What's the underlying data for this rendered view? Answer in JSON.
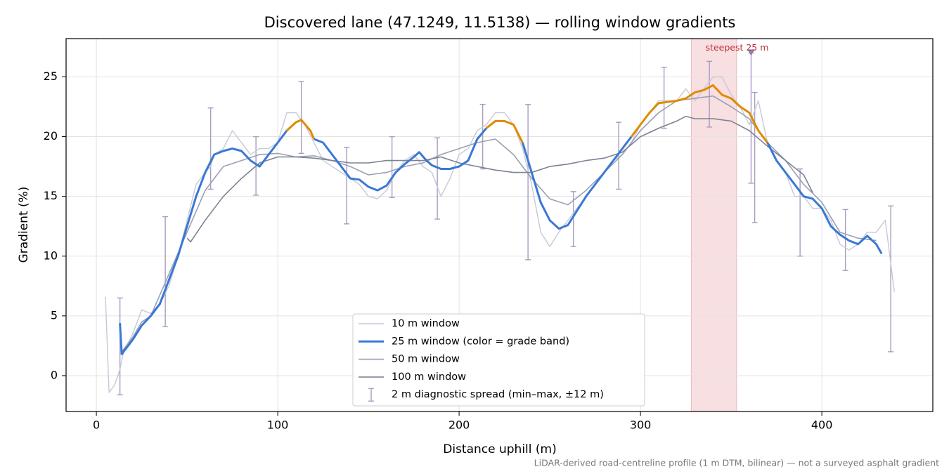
{
  "chart_data": {
    "type": "line",
    "title": "Discovered lane (47.1249, 11.5138) — rolling window gradients",
    "xlabel": "Distance uphill (m)",
    "ylabel": "Gradient (%)",
    "footnote": "LiDAR-derived road-centreline profile (1 m DTM, bilinear) — not a surveyed asphalt gradient",
    "xlim": [
      -16.7,
      461.2
    ],
    "ylim": [
      -3,
      28.2
    ],
    "xticks": [
      0,
      100,
      200,
      300,
      400
    ],
    "yticks": [
      0,
      5,
      10,
      15,
      20,
      25
    ],
    "grid": true,
    "legend": "lower center",
    "highlight": {
      "xlim": [
        328,
        353
      ],
      "color": "#f2c4c8"
    },
    "annotation": {
      "text": "steepest 25 m",
      "x": 361,
      "y": 27,
      "color": "#c0303a",
      "marker_color": "#8e7fa8"
    },
    "series": [
      {
        "name": "10 m window",
        "color": "#c5c9d8",
        "width": 1.4,
        "x": [
          5,
          7,
          10,
          13,
          15,
          20,
          25,
          30,
          35,
          40,
          45,
          50,
          55,
          60,
          63,
          65,
          70,
          75,
          80,
          85,
          90,
          95,
          100,
          105,
          110,
          115,
          120,
          125,
          130,
          135,
          140,
          145,
          150,
          155,
          160,
          165,
          170,
          175,
          180,
          185,
          190,
          195,
          200,
          205,
          210,
          215,
          220,
          225,
          230,
          235,
          240,
          245,
          250,
          255,
          260,
          265,
          270,
          275,
          280,
          285,
          290,
          295,
          300,
          305,
          310,
          315,
          320,
          325,
          330,
          335,
          340,
          345,
          350,
          355,
          360,
          365,
          370,
          375,
          380,
          385,
          390,
          395,
          400,
          405,
          410,
          415,
          420,
          425,
          430,
          435,
          440
        ],
        "values": [
          6.6,
          -1.4,
          -0.8,
          0.5,
          2,
          3.5,
          5.5,
          5.2,
          6,
          7.5,
          10,
          13,
          16,
          17,
          17.5,
          18.5,
          19,
          20.5,
          19.5,
          18.5,
          19,
          19,
          19.5,
          22,
          22,
          21,
          19.5,
          18,
          17.5,
          17,
          16.5,
          16,
          15,
          14.8,
          15.5,
          17,
          18,
          18.5,
          17.5,
          17,
          15,
          16.5,
          18.5,
          19,
          20.5,
          21,
          22,
          22,
          21,
          19,
          16,
          12,
          10.8,
          12,
          13,
          14,
          15,
          16,
          17,
          18,
          18.5,
          19.5,
          21,
          22,
          23,
          23,
          23,
          24,
          23,
          24,
          25,
          25,
          23.5,
          22.5,
          21,
          23,
          19.5,
          18,
          17,
          15,
          15,
          14,
          14,
          13,
          11,
          10.5,
          11,
          12,
          12,
          13,
          7
        ]
      },
      {
        "name": "25 m window (color = grade band)",
        "color": "#3a78d4",
        "width": 3,
        "color_bands": [
          {
            "min": 20,
            "color": "#e08a00"
          }
        ],
        "x": [
          13,
          14,
          20,
          25,
          30,
          35,
          40,
          45,
          50,
          55,
          60,
          65,
          70,
          75,
          80,
          85,
          90,
          95,
          100,
          105,
          110,
          113,
          118,
          120,
          125,
          130,
          135,
          140,
          145,
          150,
          155,
          160,
          165,
          170,
          175,
          178,
          182,
          185,
          190,
          195,
          200,
          205,
          210,
          215,
          220,
          225,
          230,
          235,
          240,
          245,
          250,
          255,
          260,
          265,
          270,
          275,
          280,
          285,
          290,
          295,
          300,
          305,
          310,
          315,
          320,
          325,
          330,
          335,
          340,
          345,
          350,
          355,
          360,
          365,
          370,
          375,
          380,
          385,
          390,
          395,
          400,
          405,
          410,
          415,
          420,
          425,
          430,
          433
        ],
        "values": [
          4.4,
          1.8,
          3,
          4.2,
          5,
          6,
          8,
          10,
          12.5,
          15,
          17,
          18.5,
          18.8,
          19,
          18.8,
          18,
          17.5,
          18.5,
          19.5,
          20.5,
          21.2,
          21.4,
          20.5,
          19.8,
          19.5,
          18.5,
          17.5,
          16.5,
          16.4,
          15.8,
          15.5,
          15.9,
          17,
          17.7,
          18.3,
          18.7,
          18,
          17.6,
          17.3,
          17.3,
          17.5,
          18,
          19.8,
          20.7,
          21.3,
          21.3,
          21,
          19.5,
          17,
          14.5,
          13,
          12.3,
          12.6,
          13.8,
          15,
          16,
          17,
          18,
          19,
          20,
          21,
          22,
          22.8,
          22.9,
          23,
          23.2,
          23.7,
          23.9,
          24.3,
          23.5,
          23.2,
          22.5,
          22,
          20.5,
          19.5,
          18,
          17,
          16,
          15,
          14.8,
          14,
          12.5,
          11.8,
          11.3,
          11,
          11.7,
          11,
          10.2
        ]
      },
      {
        "name": "50 m window",
        "color": "#9aa0b4",
        "width": 1.6,
        "x": [
          13,
          14,
          20,
          25,
          30,
          40,
          50,
          60,
          70,
          80,
          90,
          100,
          110,
          120,
          130,
          140,
          150,
          160,
          170,
          180,
          190,
          200,
          210,
          220,
          230,
          240,
          250,
          260,
          270,
          280,
          290,
          300,
          310,
          320,
          330,
          340,
          350,
          360,
          370,
          380,
          390,
          400,
          410,
          420,
          430
        ],
        "values": [
          4,
          2,
          3.2,
          4.5,
          5,
          8.5,
          12,
          15.5,
          17.5,
          18,
          18.5,
          18.6,
          18.3,
          18.4,
          18,
          17.5,
          16.8,
          17,
          17.5,
          17.8,
          18.5,
          19,
          19.5,
          19.8,
          18.5,
          16.5,
          14.8,
          14.3,
          15.5,
          17,
          18.5,
          20.5,
          22,
          23,
          23.2,
          23.4,
          22.5,
          21.5,
          19.5,
          18,
          16,
          14.5,
          12,
          11.5,
          11.3
        ]
      },
      {
        "name": "100 m window",
        "color": "#7d8294",
        "width": 1.6,
        "x": [
          50,
          52,
          60,
          70,
          80,
          90,
          100,
          110,
          120,
          130,
          140,
          150,
          160,
          170,
          180,
          190,
          200,
          210,
          220,
          230,
          240,
          250,
          260,
          270,
          280,
          290,
          300,
          310,
          320,
          325,
          330,
          340,
          350,
          360,
          370,
          380,
          390,
          395
        ],
        "values": [
          11.5,
          11.2,
          13,
          15,
          16.5,
          17.8,
          18.3,
          18.3,
          18.2,
          18,
          17.8,
          17.8,
          18,
          18,
          18,
          18.3,
          17.8,
          17.5,
          17.2,
          17,
          17,
          17.5,
          17.7,
          18,
          18.2,
          18.7,
          20,
          20.7,
          21.3,
          21.7,
          21.5,
          21.5,
          21.3,
          20.5,
          19.2,
          18,
          16.8,
          15.3
        ]
      }
    ],
    "errorbars": {
      "name": "2 m diagnostic spread (min–max, ±12 m)",
      "color": "#a89cc0",
      "x": [
        13,
        38,
        63,
        88,
        113,
        138,
        163,
        188,
        213,
        238,
        263,
        288,
        313,
        338,
        361,
        363,
        388,
        413,
        438
      ],
      "low": [
        -1.6,
        4.1,
        15.6,
        15.1,
        18.6,
        12.7,
        14.9,
        13.1,
        17.3,
        9.7,
        10.8,
        15.6,
        20.7,
        20.8,
        16.1,
        12.8,
        10,
        8.8,
        2
      ],
      "high": [
        6.5,
        13.3,
        22.4,
        20,
        24.6,
        19.1,
        20,
        19.9,
        22.7,
        22.7,
        15.4,
        21.2,
        25.8,
        26.3,
        27,
        23.7,
        17.3,
        13.9,
        14.2
      ]
    }
  }
}
